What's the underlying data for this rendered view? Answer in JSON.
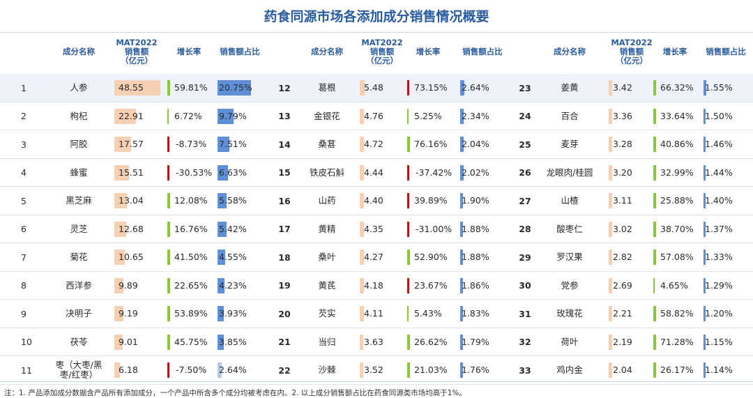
{
  "title": "药食同源市场各添加成分销售情况概要",
  "headers": {
    "name": "成分名称",
    "sales": "MAT2022\n销售额\n（亿元）",
    "growth": "增长率",
    "share": "销售额占比"
  },
  "panels": [
    {
      "rows": [
        {
          "rank": "1",
          "name": "人参",
          "sales": "48.55",
          "growth": "59.81%",
          "share": "20.75%",
          "sales_v": 48.55,
          "growth_v": 59.81,
          "share_v": 20.75
        },
        {
          "rank": "2",
          "name": "枸杞",
          "sales": "22.91",
          "growth": "6.72%",
          "share": "9.79%",
          "sales_v": 22.91,
          "growth_v": 6.72,
          "share_v": 9.79
        },
        {
          "rank": "3",
          "name": "阿胶",
          "sales": "17.57",
          "growth": "-8.73%",
          "share": "7.51%",
          "sales_v": 17.57,
          "growth_v": -8.73,
          "share_v": 7.51
        },
        {
          "rank": "4",
          "name": "蜂蜜",
          "sales": "15.51",
          "growth": "-30.53%",
          "share": "6.63%",
          "sales_v": 15.51,
          "growth_v": -30.53,
          "share_v": 6.63
        },
        {
          "rank": "5",
          "name": "黑芝麻",
          "sales": "13.04",
          "growth": "12.08%",
          "share": "5.58%",
          "sales_v": 13.04,
          "growth_v": 12.08,
          "share_v": 5.58
        },
        {
          "rank": "6",
          "name": "灵芝",
          "sales": "12.68",
          "growth": "16.76%",
          "share": "5.42%",
          "sales_v": 12.68,
          "growth_v": 16.76,
          "share_v": 5.42
        },
        {
          "rank": "7",
          "name": "菊花",
          "sales": "10.65",
          "growth": "41.50%",
          "share": "4.55%",
          "sales_v": 10.65,
          "growth_v": 41.5,
          "share_v": 4.55
        },
        {
          "rank": "8",
          "name": "西洋参",
          "sales": "9.89",
          "growth": "22.65%",
          "share": "4.23%",
          "sales_v": 9.89,
          "growth_v": 22.65,
          "share_v": 4.23
        },
        {
          "rank": "9",
          "name": "决明子",
          "sales": "9.19",
          "growth": "53.89%",
          "share": "3.93%",
          "sales_v": 9.19,
          "growth_v": 53.89,
          "share_v": 3.93
        },
        {
          "rank": "10",
          "name": "茯苓",
          "sales": "9.01",
          "growth": "45.75%",
          "share": "3.85%",
          "sales_v": 9.01,
          "growth_v": 45.75,
          "share_v": 3.85
        },
        {
          "rank": "11",
          "name": "枣（大枣/黑枣/红枣）",
          "sales": "6.18",
          "growth": "-7.50%",
          "share": "2.64%",
          "sales_v": 6.18,
          "growth_v": -7.5,
          "share_v": 2.64
        }
      ]
    },
    {
      "rows": [
        {
          "rank": "12",
          "name": "葛根",
          "sales": "5.48",
          "growth": "73.15%",
          "share": "2.64%",
          "sales_v": 5.48,
          "growth_v": 73.15,
          "share_v": 2.64,
          "growth_neg_mark": true
        },
        {
          "rank": "13",
          "name": "金银花",
          "sales": "4.76",
          "growth": "5.25%",
          "share": "2.34%",
          "sales_v": 4.76,
          "growth_v": 5.25,
          "share_v": 2.34
        },
        {
          "rank": "14",
          "name": "桑葚",
          "sales": "4.72",
          "growth": "76.16%",
          "share": "2.04%",
          "sales_v": 4.72,
          "growth_v": 76.16,
          "share_v": 2.04
        },
        {
          "rank": "15",
          "name": "铁皮石斛",
          "sales": "4.44",
          "growth": "-37.42%",
          "share": "2.02%",
          "sales_v": 4.44,
          "growth_v": -37.42,
          "share_v": 2.02
        },
        {
          "rank": "16",
          "name": "山药",
          "sales": "4.40",
          "growth": "39.89%",
          "share": "1.90%",
          "sales_v": 4.4,
          "growth_v": 39.89,
          "share_v": 1.9,
          "growth_neg_mark": true
        },
        {
          "rank": "17",
          "name": "黄精",
          "sales": "4.35",
          "growth": "-31.00%",
          "share": "1.88%",
          "sales_v": 4.35,
          "growth_v": -31.0,
          "share_v": 1.88
        },
        {
          "rank": "18",
          "name": "桑叶",
          "sales": "4.27",
          "growth": "52.90%",
          "share": "1.88%",
          "sales_v": 4.27,
          "growth_v": 52.9,
          "share_v": 1.88
        },
        {
          "rank": "19",
          "name": "黄芪",
          "sales": "4.18",
          "growth": "23.67%",
          "share": "1.86%",
          "sales_v": 4.18,
          "growth_v": 23.67,
          "share_v": 1.86,
          "growth_neg_mark": true
        },
        {
          "rank": "20",
          "name": "芡实",
          "sales": "4.11",
          "growth": "5.43%",
          "share": "1.83%",
          "sales_v": 4.11,
          "growth_v": 5.43,
          "share_v": 1.83
        },
        {
          "rank": "21",
          "name": "当归",
          "sales": "3.63",
          "growth": "26.62%",
          "share": "1.79%",
          "sales_v": 3.63,
          "growth_v": 26.62,
          "share_v": 1.79
        },
        {
          "rank": "22",
          "name": "沙棘",
          "sales": "3.52",
          "growth": "21.03%",
          "share": "1.76%",
          "sales_v": 3.52,
          "growth_v": 21.03,
          "share_v": 1.76
        }
      ]
    },
    {
      "rows": [
        {
          "rank": "23",
          "name": "姜黄",
          "sales": "3.42",
          "growth": "66.32%",
          "share": "1.55%",
          "sales_v": 3.42,
          "growth_v": 66.32,
          "share_v": 1.55
        },
        {
          "rank": "24",
          "name": "百合",
          "sales": "3.36",
          "growth": "33.64%",
          "share": "1.50%",
          "sales_v": 3.36,
          "growth_v": 33.64,
          "share_v": 1.5
        },
        {
          "rank": "25",
          "name": "麦芽",
          "sales": "3.28",
          "growth": "40.86%",
          "share": "1.46%",
          "sales_v": 3.28,
          "growth_v": 40.86,
          "share_v": 1.46
        },
        {
          "rank": "26",
          "name": "龙眼肉/桂圆",
          "sales": "3.20",
          "growth": "32.99%",
          "share": "1.44%",
          "sales_v": 3.2,
          "growth_v": 32.99,
          "share_v": 1.44
        },
        {
          "rank": "27",
          "name": "山楂",
          "sales": "3.11",
          "growth": "25.88%",
          "share": "1.40%",
          "sales_v": 3.11,
          "growth_v": 25.88,
          "share_v": 1.4
        },
        {
          "rank": "28",
          "name": "酸枣仁",
          "sales": "3.02",
          "growth": "38.70%",
          "share": "1.37%",
          "sales_v": 3.02,
          "growth_v": 38.7,
          "share_v": 1.37
        },
        {
          "rank": "29",
          "name": "罗汉果",
          "sales": "2.82",
          "growth": "57.08%",
          "share": "1.33%",
          "sales_v": 2.82,
          "growth_v": 57.08,
          "share_v": 1.33
        },
        {
          "rank": "30",
          "name": "党参",
          "sales": "2.69",
          "growth": "4.65%",
          "share": "1.29%",
          "sales_v": 2.69,
          "growth_v": 4.65,
          "share_v": 1.29
        },
        {
          "rank": "31",
          "name": "玫瑰花",
          "sales": "2.21",
          "growth": "58.82%",
          "share": "1.20%",
          "sales_v": 2.21,
          "growth_v": 58.82,
          "share_v": 1.2
        },
        {
          "rank": "32",
          "name": "荷叶",
          "sales": "2.19",
          "growth": "71.28%",
          "share": "1.15%",
          "sales_v": 2.19,
          "growth_v": 71.28,
          "share_v": 1.15
        },
        {
          "rank": "33",
          "name": "鸡内金",
          "sales": "2.04",
          "growth": "26.17%",
          "share": "1.14%",
          "sales_v": 2.04,
          "growth_v": 26.17,
          "share_v": 1.14
        }
      ]
    }
  ],
  "note": "注：1. 产品添加成分数据含产品所有添加成分，一个产品中所含多个成分均被考虑在内。2. 以上成分销售额占比在药食同源类市场均高于1%。",
  "colors": {
    "title": "#2a5c9e",
    "sales_bar": "#f7cfb3",
    "share_bar": "#5f8fd6",
    "growth_pos": "#8cc63f",
    "growth_neg": "#b01818",
    "stripe": "#eef2f9"
  }
}
